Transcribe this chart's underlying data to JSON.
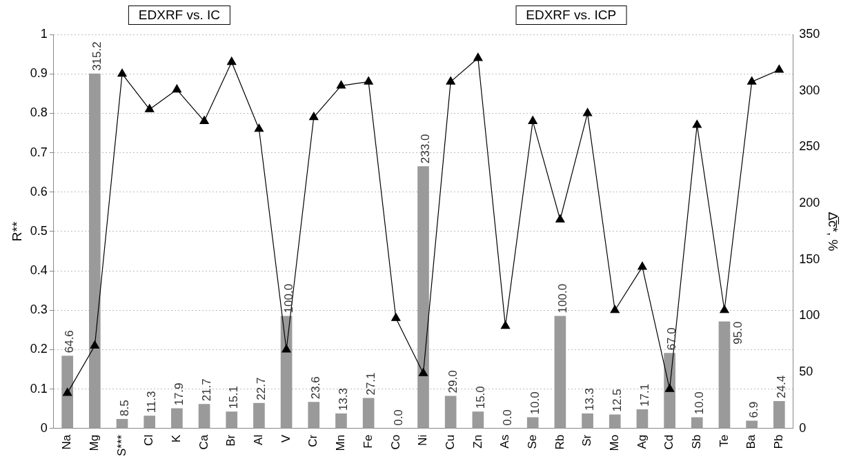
{
  "chart_data": {
    "type": "bar",
    "categories": [
      "Na",
      "Mg",
      "S***",
      "Cl",
      "K",
      "Ca",
      "Br",
      "Al",
      "V",
      "Cr",
      "Mn",
      "Fe",
      "Co",
      "Ni",
      "Cu",
      "Zn",
      "As",
      "Se",
      "Rb",
      "Sr",
      "Mo",
      "Ag",
      "Cd",
      "Sb",
      "Te",
      "Ba",
      "Pb"
    ],
    "series": [
      {
        "axis": "y2",
        "color": "#9a9a9a",
        "values": [
          64.6,
          315.2,
          8.5,
          11.3,
          17.9,
          21.7,
          15.1,
          22.7,
          100.0,
          23.6,
          13.3,
          27.1,
          0.0,
          233.0,
          29.0,
          15.0,
          0.0,
          10.0,
          100.0,
          13.3,
          12.5,
          17.1,
          67.0,
          10.0,
          95.0,
          6.9,
          24.4
        ],
        "value_labels": [
          "64.6",
          "315.2",
          "8.5",
          "11.3",
          "17.9",
          "21.7",
          "15.1",
          "22.7",
          "100.0",
          "23.6",
          "13.3",
          "27.1",
          "0.0",
          "233.0",
          "29.0",
          "15.0",
          "0.0",
          "10.0",
          "100.0",
          "13.3",
          "12.5",
          "17.1",
          "67.0",
          "10.0",
          "95.0",
          "6.9",
          "24.4"
        ]
      },
      {
        "type": "line",
        "color": "#000000",
        "marker": "triangle",
        "values": [
          0.09,
          0.21,
          0.9,
          0.81,
          0.86,
          0.78,
          0.93,
          0.76,
          0.2,
          0.79,
          0.87,
          0.88,
          0.28,
          0.14,
          0.88,
          0.94,
          0.26,
          0.78,
          0.53,
          0.8,
          0.3,
          0.41,
          0.1,
          0.77,
          0.3,
          0.88,
          0.91
        ]
      }
    ],
    "ylabel": "R**",
    "y2label": "Δ̅c̅*, %",
    "ylim": [
      0,
      1
    ],
    "yticks": [
      0,
      0.1,
      0.2,
      0.3,
      0.4,
      0.5,
      0.6,
      0.7,
      0.8,
      0.9,
      1
    ],
    "y2lim": [
      0,
      350
    ],
    "y2ticks": [
      0,
      50,
      100,
      150,
      200,
      250,
      300,
      350
    ],
    "grid": "y",
    "legend": false,
    "annotations": [
      "EDXRF vs. IC",
      "EDXRF vs. ICP"
    ]
  }
}
